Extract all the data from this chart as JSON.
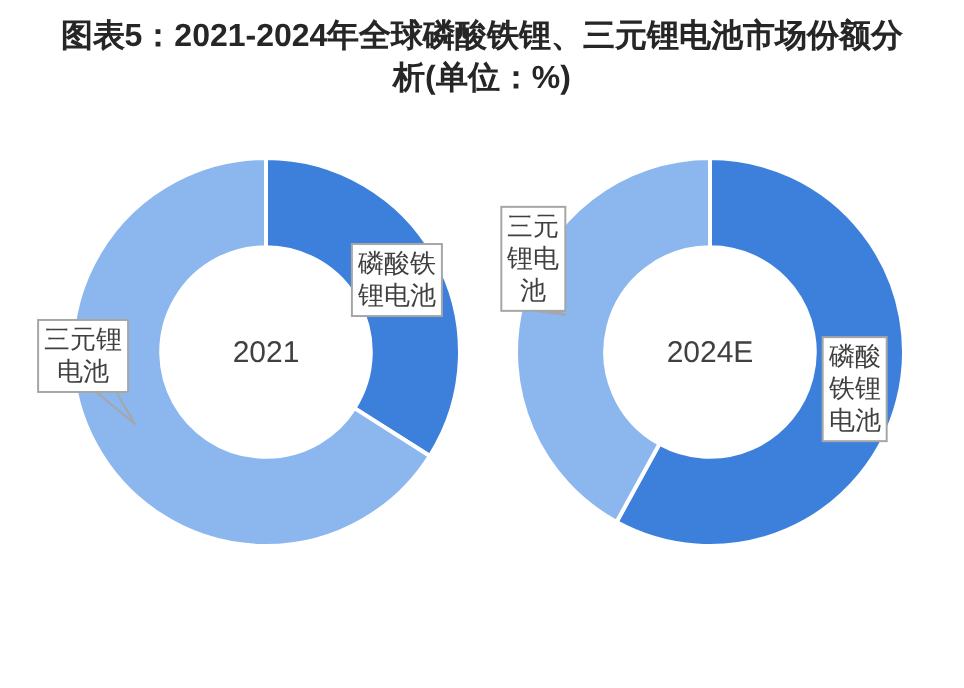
{
  "chart_data": [
    {
      "type": "donut",
      "title": "图表5：2021-2024年全球磷酸铁锂、三元锂电池市场份额分析(单位：%)",
      "categories": [
        "磷酸铁锂电池",
        "三元锂电池"
      ],
      "values": [
        34,
        66
      ],
      "colors": [
        "#3d80dc",
        "#8cb7ee"
      ],
      "annotations": [
        "2021"
      ]
    },
    {
      "type": "donut",
      "categories": [
        "磷酸铁锂电池",
        "三元锂电池"
      ],
      "values": [
        58,
        42
      ],
      "colors": [
        "#3d80dc",
        "#8cb7ee"
      ],
      "annotations": [
        "2024E"
      ]
    }
  ]
}
